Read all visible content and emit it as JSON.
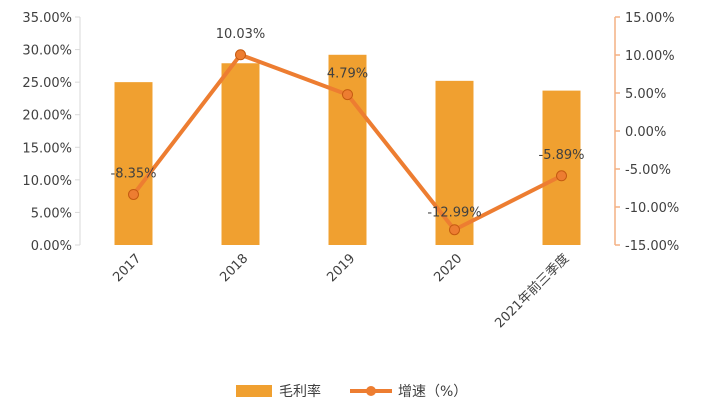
{
  "chart_data": {
    "type": "bar+line",
    "categories": [
      "2017",
      "2018",
      "2019",
      "2020",
      "2021年前三季度"
    ],
    "series": [
      {
        "name": "毛利率",
        "type": "bar",
        "axis": "left",
        "values": [
          25.0,
          27.9,
          29.2,
          25.2,
          23.7
        ]
      },
      {
        "name": "增速（%）",
        "type": "line",
        "axis": "right",
        "values": [
          -8.35,
          10.03,
          4.79,
          -12.99,
          -5.89
        ],
        "labels": [
          "-8.35%",
          "10.03%",
          "4.79%",
          "-12.99%",
          "-5.89%"
        ]
      }
    ],
    "y_left": {
      "range": [
        0,
        35
      ],
      "step": 5,
      "tick_labels": [
        "0.00%",
        "5.00%",
        "10.00%",
        "15.00%",
        "20.00%",
        "25.00%",
        "30.00%",
        "35.00%"
      ]
    },
    "y_right": {
      "range": [
        -15,
        15
      ],
      "step": 5,
      "tick_labels": [
        "-15.00%",
        "-10.00%",
        "-5.00%",
        "0.00%",
        "5.00%",
        "10.00%",
        "15.00%"
      ]
    },
    "legend": {
      "position": "bottom",
      "items": [
        "毛利率",
        "增速（%）"
      ]
    },
    "colors": {
      "bar": "#f0a030",
      "line": "#ed7d31",
      "marker": "#ed7d31",
      "left_axis": "#d9d9d9",
      "right_axis": "#f4b183"
    },
    "grid": false
  }
}
